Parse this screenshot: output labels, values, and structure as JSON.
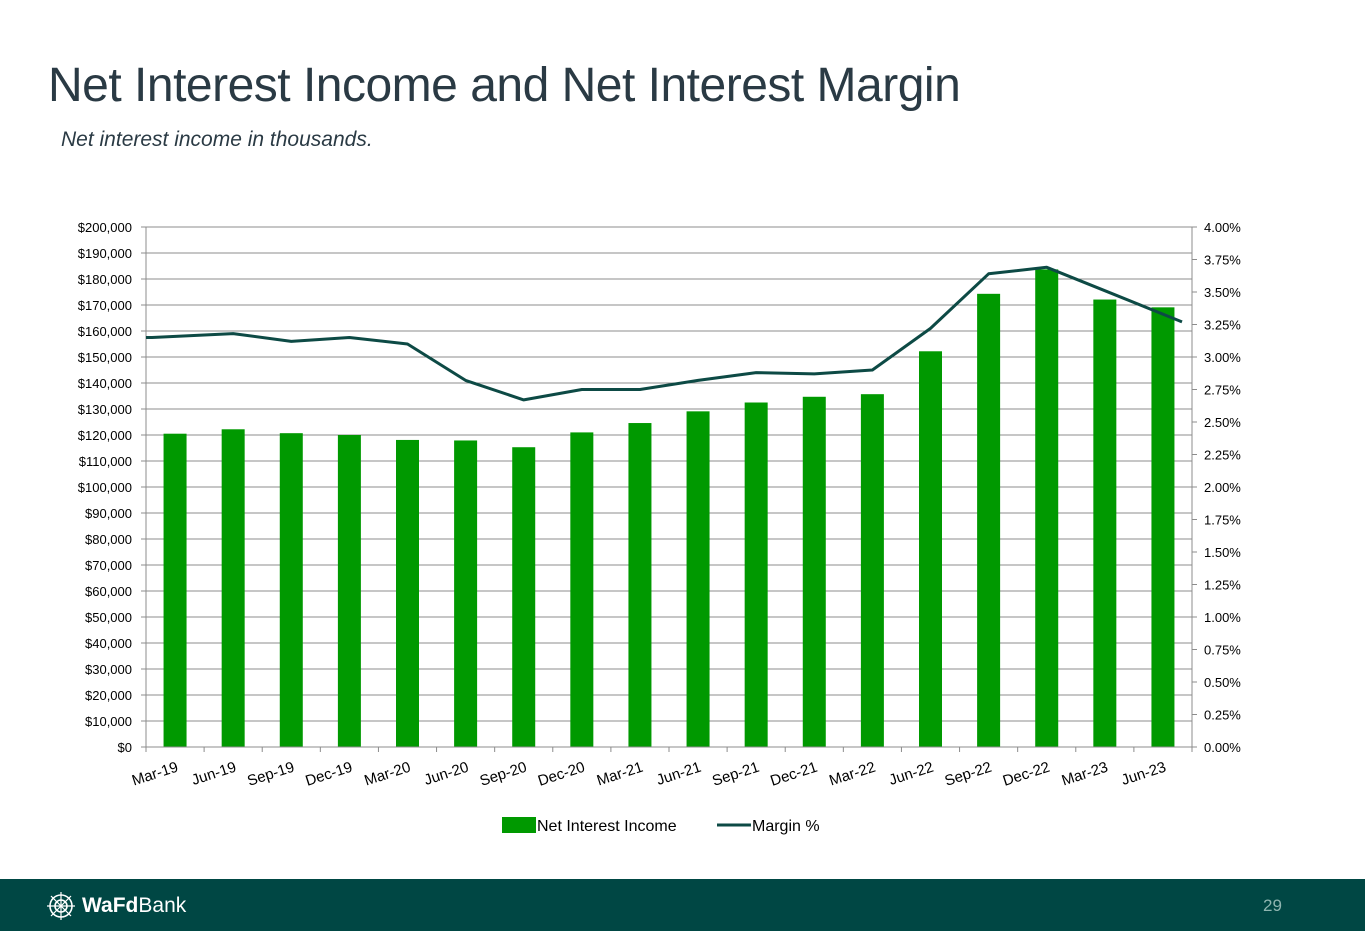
{
  "title": "Net Interest Income and Net Interest Margin",
  "subtitle": "Net interest income in thousands.",
  "footer": {
    "logo_bold": "WaFd",
    "logo_regular": "Bank",
    "page_number": "29"
  },
  "colors": {
    "bar": "#009900",
    "line": "#0d4a45",
    "footer_bg": "#004744"
  },
  "chart_data": {
    "type": "bar",
    "title": "",
    "categories": [
      "Mar-19",
      "Jun-19",
      "Sep-19",
      "Dec-19",
      "Mar-20",
      "Jun-20",
      "Sep-20",
      "Dec-20",
      "Mar-21",
      "Jun-21",
      "Sep-21",
      "Dec-21",
      "Mar-22",
      "Jun-22",
      "Sep-22",
      "Dec-22",
      "Mar-23",
      "Jun-23"
    ],
    "series": [
      {
        "name": "Net Interest Income",
        "type": "bar",
        "axis": "left",
        "values": [
          120500,
          122200,
          120700,
          120000,
          118100,
          117900,
          115300,
          121000,
          124600,
          129100,
          132500,
          134700,
          135700,
          152200,
          174300,
          183700,
          172100,
          169100
        ]
      },
      {
        "name": "Margin %",
        "type": "line",
        "axis": "right",
        "values": [
          3.15,
          3.18,
          3.12,
          3.15,
          3.1,
          2.82,
          2.67,
          2.75,
          2.75,
          2.82,
          2.88,
          2.87,
          2.9,
          3.22,
          3.64,
          3.69,
          3.51,
          3.27
        ]
      }
    ],
    "ylim_left": [
      0,
      200000
    ],
    "ylim_right": [
      0,
      4.0
    ],
    "yticks_left": [
      "$0",
      "$10,000",
      "$20,000",
      "$30,000",
      "$40,000",
      "$50,000",
      "$60,000",
      "$70,000",
      "$80,000",
      "$90,000",
      "$100,000",
      "$110,000",
      "$120,000",
      "$130,000",
      "$140,000",
      "$150,000",
      "$160,000",
      "$170,000",
      "$180,000",
      "$190,000",
      "$200,000"
    ],
    "yticks_right": [
      "0.00%",
      "0.25%",
      "0.50%",
      "0.75%",
      "1.00%",
      "1.25%",
      "1.50%",
      "1.75%",
      "2.00%",
      "2.25%",
      "2.50%",
      "2.75%",
      "3.00%",
      "3.25%",
      "3.50%",
      "3.75%",
      "4.00%"
    ],
    "grid": true,
    "legend": "bottom-center"
  }
}
